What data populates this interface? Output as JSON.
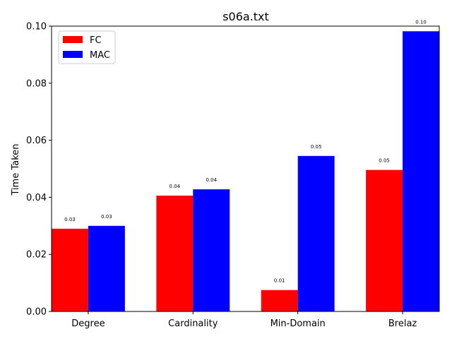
{
  "chart_data": {
    "type": "bar",
    "title": "s06a.txt",
    "xlabel": "",
    "ylabel": "Time Taken",
    "categories": [
      "Degree",
      "Cardinality",
      "Min-Domain",
      "Brelaz"
    ],
    "series": [
      {
        "name": "FC",
        "color": "#ff0000",
        "values": [
          0.029,
          0.0406,
          0.0075,
          0.0496
        ],
        "labels": [
          "0.03",
          "0.04",
          "0.01",
          "0.05"
        ]
      },
      {
        "name": "MAC",
        "color": "#0000ff",
        "values": [
          0.03,
          0.0428,
          0.0545,
          0.0982
        ],
        "labels": [
          "0.03",
          "0.04",
          "0.05",
          "0.10"
        ]
      }
    ],
    "ylim": [
      0,
      0.1
    ],
    "yticks": [
      "0.00",
      "0.02",
      "0.04",
      "0.06",
      "0.08",
      "0.10"
    ],
    "grid": false,
    "legend_position": "top-left"
  }
}
